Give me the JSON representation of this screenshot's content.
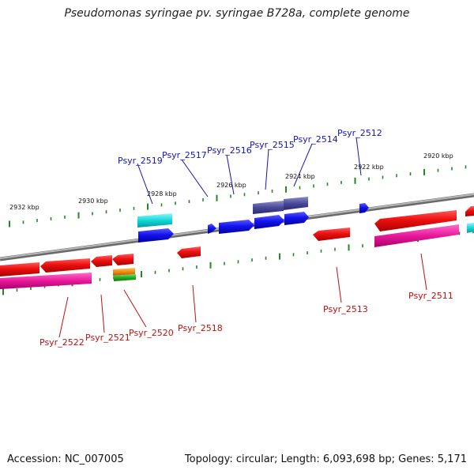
{
  "title": "Pseudomonas syringae pv. syringae B728a, complete genome",
  "footer": {
    "accession": "Accession: NC_007005",
    "summary": "Topology: circular; Length: 6,093,698 bp; Genes: 5,171"
  },
  "colors": {
    "forward_gene": "#1010e8",
    "reverse_gene": "#e80c0c",
    "rna_magenta": "#e8189a",
    "cyan_feature": "#10d8d8",
    "purple_feature": "#4a4a9a",
    "orange_feature": "#f08c10",
    "green_feature": "#20b020",
    "backbone": "#888888",
    "tick": "#208a20",
    "forward_label": "#1515b5",
    "reverse_label": "#c01010"
  },
  "kbp_ticks": [
    "2932 kbp",
    "2930 kbp",
    "2928 kbp",
    "2926 kbp",
    "2924 kbp",
    "2922 kbp",
    "2920 kbp"
  ],
  "forward_labels": [
    "Psyr_2519",
    "Psyr_2517",
    "Psyr_2516",
    "Psyr_2515",
    "Psyr_2514",
    "Psyr_2512"
  ],
  "reverse_labels": [
    "Psyr_2522",
    "Psyr_2521",
    "Psyr_2520",
    "Psyr_2518",
    "Psyr_2513",
    "Psyr_2511"
  ]
}
